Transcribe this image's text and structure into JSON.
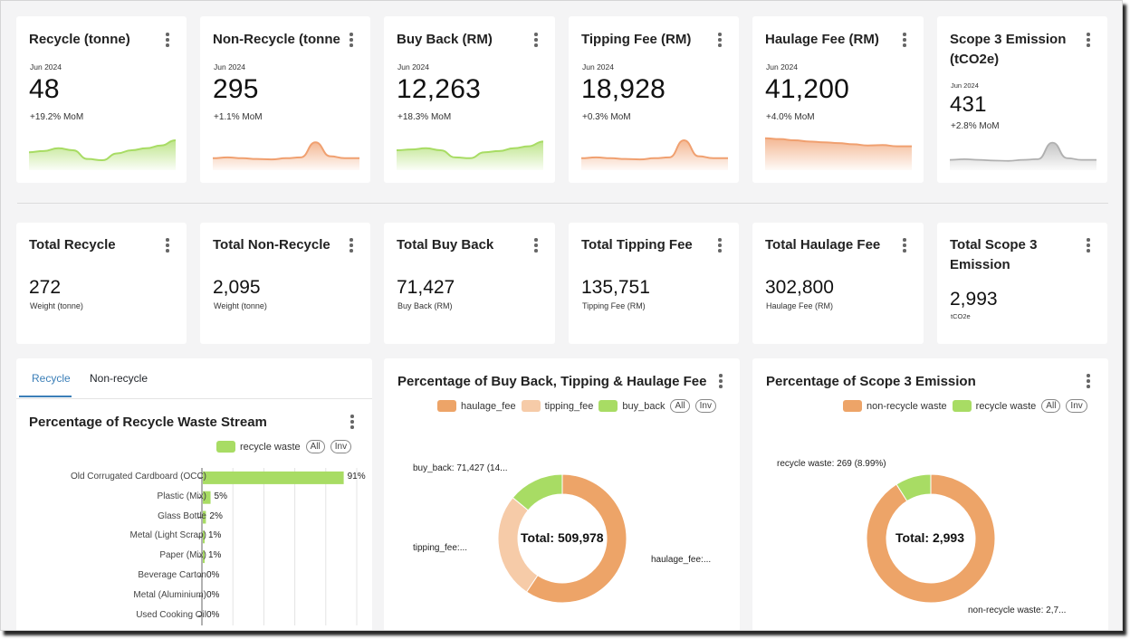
{
  "kpis": [
    {
      "title": "Recycle (tonne)",
      "period": "Jun 2024",
      "value": "48",
      "delta": "+19.2% MoM",
      "color": "#a8dc64",
      "trend": [
        0.45,
        0.48,
        0.55,
        0.5,
        0.28,
        0.25,
        0.42,
        0.5,
        0.55,
        0.62,
        0.75
      ]
    },
    {
      "title": "Non-Recycle (tonne",
      "period": "Jun 2024",
      "value": "295",
      "delta": "+1.1% MoM",
      "color": "#f0a070",
      "trend": [
        0.3,
        0.32,
        0.3,
        0.28,
        0.27,
        0.3,
        0.32,
        0.7,
        0.35,
        0.3,
        0.3
      ]
    },
    {
      "title": "Buy Back (RM)",
      "period": "Jun 2024",
      "value": "12,263",
      "delta": "+18.3% MoM",
      "color": "#a8dc64",
      "trend": [
        0.5,
        0.52,
        0.55,
        0.5,
        0.32,
        0.3,
        0.45,
        0.48,
        0.55,
        0.6,
        0.72
      ]
    },
    {
      "title": "Tipping Fee (RM)",
      "period": "Jun 2024",
      "value": "18,928",
      "delta": "+0.3% MoM",
      "color": "#f0a070",
      "trend": [
        0.3,
        0.32,
        0.3,
        0.28,
        0.27,
        0.3,
        0.32,
        0.75,
        0.35,
        0.3,
        0.3
      ]
    },
    {
      "title": "Haulage Fee (RM)",
      "period": "Jun 2024",
      "value": "41,200",
      "delta": "+4.0% MoM",
      "color": "#f0a070",
      "trend": [
        0.8,
        0.78,
        0.75,
        0.72,
        0.7,
        0.68,
        0.65,
        0.62,
        0.63,
        0.6,
        0.6
      ]
    },
    {
      "title": "Scope 3 Emission (tCO2e)",
      "period": "Jun 2024",
      "value": "431",
      "delta": "+2.8% MoM",
      "color": "#b0b0b0",
      "trend": [
        0.3,
        0.32,
        0.3,
        0.28,
        0.27,
        0.3,
        0.32,
        0.8,
        0.35,
        0.3,
        0.3
      ]
    }
  ],
  "totals": [
    {
      "title": "Total Recycle",
      "value": "272",
      "unit": "Weight (tonne)"
    },
    {
      "title": "Total Non-Recycle",
      "value": "2,095",
      "unit": "Weight (tonne)"
    },
    {
      "title": "Total Buy Back",
      "value": "71,427",
      "unit": "Buy Back (RM)"
    },
    {
      "title": "Total Tipping Fee",
      "value": "135,751",
      "unit": "Tipping Fee (RM)"
    },
    {
      "title": "Total Haulage Fee",
      "value": "302,800",
      "unit": "Haulage Fee (RM)"
    },
    {
      "title": "Total Scope 3 Emission",
      "value": "2,993",
      "unit": "tCO2e"
    }
  ],
  "waste_panel": {
    "tabs": [
      "Recycle",
      "Non-recycle"
    ],
    "active_tab": "Recycle",
    "title": "Percentage of Recycle Waste Stream",
    "legend_label": "recycle waste",
    "legend_color": "#a8dc64",
    "all_label": "All",
    "inv_label": "Inv"
  },
  "fee_panel": {
    "title": "Percentage of Buy Back, Tipping & Haulage Fee",
    "legend": [
      {
        "label": "haulage_fee",
        "color": "#eda468"
      },
      {
        "label": "tipping_fee",
        "color": "#f6cba8"
      },
      {
        "label": "buy_back",
        "color": "#a8dc64"
      }
    ],
    "all_label": "All",
    "inv_label": "Inv"
  },
  "emission_panel": {
    "title": "Percentage of Scope 3 Emission",
    "legend": [
      {
        "label": "non-recycle waste",
        "color": "#eda468"
      },
      {
        "label": "recycle waste",
        "color": "#a8dc64"
      }
    ],
    "all_label": "All",
    "inv_label": "Inv"
  },
  "chart_data": [
    {
      "type": "bar",
      "orientation": "horizontal",
      "title": "Percentage of Recycle Waste Stream",
      "categories": [
        "Old Corrugated Cardboard (OCC)",
        "Plastic (Mix)",
        "Glass Bottle",
        "Metal (Light Scrap)",
        "Paper (Mix)",
        "Beverage Carton",
        "Metal (Aluminium)",
        "Used Cooking Oil"
      ],
      "values": [
        91,
        5,
        2,
        1,
        1,
        0,
        0,
        0
      ],
      "value_labels": [
        "91%",
        "5%",
        "2%",
        "1%",
        "1%",
        "0%",
        "0%",
        "0%"
      ],
      "series_name": "recycle waste",
      "xlim": [
        0,
        100
      ],
      "grid": true
    },
    {
      "type": "pie",
      "donut": true,
      "title": "Percentage of Buy Back, Tipping & Haulage Fee",
      "center_label": "Total: 509,978",
      "slices": [
        {
          "name": "haulage_fee",
          "value": 302800,
          "color": "#eda468",
          "label": "haulage_fee:..."
        },
        {
          "name": "tipping_fee",
          "value": 135751,
          "color": "#f6cba8",
          "label": "tipping_fee:..."
        },
        {
          "name": "buy_back",
          "value": 71427,
          "color": "#a8dc64",
          "label": "buy_back: 71,427 (14..."
        }
      ]
    },
    {
      "type": "pie",
      "donut": true,
      "title": "Percentage of Scope 3 Emission",
      "center_label": "Total: 2,993",
      "slices": [
        {
          "name": "non-recycle waste",
          "value": 2724,
          "color": "#eda468",
          "label": "non-recycle waste: 2,7..."
        },
        {
          "name": "recycle waste",
          "value": 269,
          "color": "#a8dc64",
          "label": "recycle waste: 269 (8.99%)"
        }
      ]
    }
  ]
}
